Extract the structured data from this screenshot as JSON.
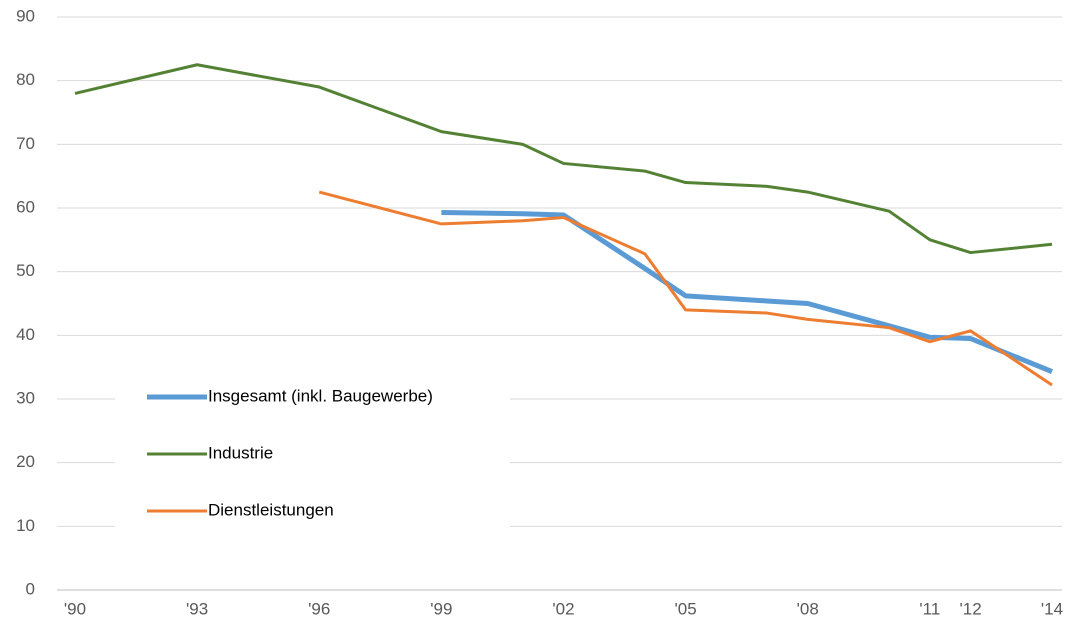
{
  "chart_data": {
    "type": "line",
    "x": [
      1990,
      1993,
      1996,
      1999,
      2001,
      2002,
      2004,
      2005,
      2007,
      2008,
      2010,
      2011,
      2012,
      2014
    ],
    "series": [
      {
        "name": "Insgesamt (inkl. Baugewerbe)",
        "color": "#5b9bd5",
        "width": 5,
        "values": [
          null,
          null,
          null,
          59.3,
          59.1,
          58.9,
          50.5,
          46.2,
          45.4,
          45.0,
          41.5,
          39.7,
          39.5,
          34.3
        ]
      },
      {
        "name": "Industrie",
        "color": "#548235",
        "width": 3,
        "values": [
          78,
          82.5,
          79,
          72,
          70,
          67,
          65.8,
          64,
          63.4,
          62.5,
          59.5,
          55,
          53,
          54.3
        ]
      },
      {
        "name": "Dienstleistungen",
        "color": "#ed7d31",
        "width": 3,
        "values": [
          null,
          null,
          62.5,
          57.5,
          58,
          58.5,
          52.8,
          44,
          43.5,
          42.5,
          41.2,
          39,
          40.7,
          32.2
        ]
      }
    ],
    "xlim": [
      1990,
      2014
    ],
    "xticks": [
      {
        "value": 1990,
        "label": "'90"
      },
      {
        "value": 1993,
        "label": "'93"
      },
      {
        "value": 1996,
        "label": "'96"
      },
      {
        "value": 1999,
        "label": "'99"
      },
      {
        "value": 2002,
        "label": "'02"
      },
      {
        "value": 2005,
        "label": "'05"
      },
      {
        "value": 2008,
        "label": "'08"
      },
      {
        "value": 2011,
        "label": "'11"
      },
      {
        "value": 2012,
        "label": "'12"
      },
      {
        "value": 2014,
        "label": "'14"
      }
    ],
    "ylim": [
      0,
      90
    ],
    "yticks": [
      0,
      10,
      20,
      30,
      40,
      50,
      60,
      70,
      80,
      90
    ],
    "grid": true,
    "legend": "lower left"
  }
}
